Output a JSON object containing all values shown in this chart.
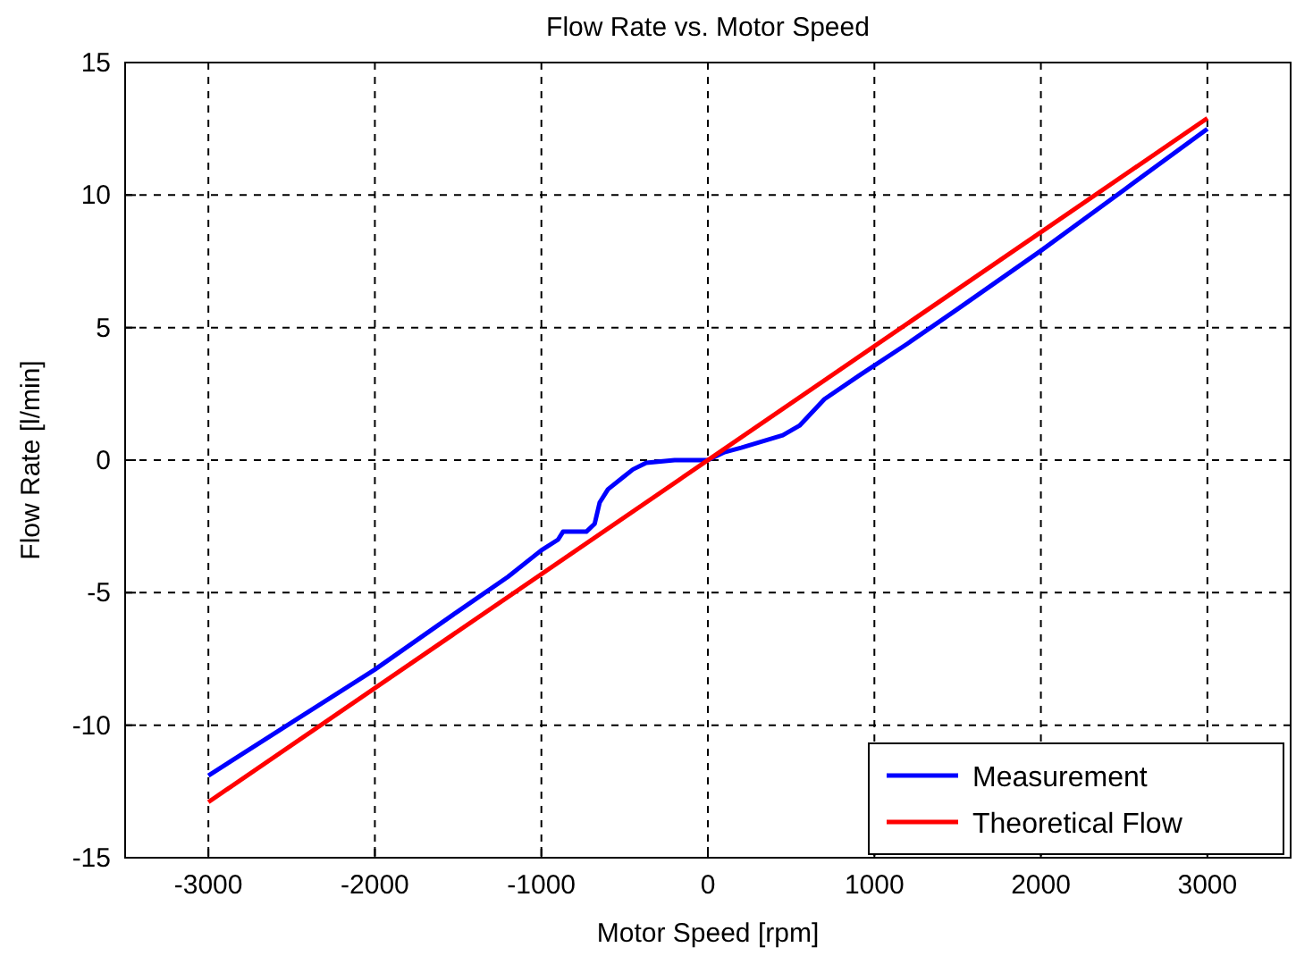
{
  "chart_data": {
    "type": "line",
    "title": "Flow Rate vs. Motor Speed",
    "xlabel": "Motor Speed [rpm]",
    "ylabel": "Flow Rate [l/min]",
    "xlim": [
      -3500,
      3500
    ],
    "ylim": [
      -15,
      15
    ],
    "xticks": [
      -3000,
      -2000,
      -1000,
      0,
      1000,
      2000,
      3000
    ],
    "yticks": [
      -15,
      -10,
      -5,
      0,
      5,
      10,
      15
    ],
    "grid": true,
    "legend": "bottom right",
    "line_style": "solid",
    "marker": "none",
    "series": [
      {
        "name": "Measurement",
        "color": "#0000ff",
        "x": [
          -3000,
          -2500,
          -2000,
          -1500,
          -1200,
          -1000,
          -900,
          -870,
          -730,
          -680,
          -650,
          -600,
          -510,
          -450,
          -370,
          -200,
          0,
          100,
          200,
          450,
          550,
          700,
          910,
          1200,
          1500,
          2000,
          2500,
          3000
        ],
        "values": [
          -11.9,
          -9.9,
          -7.9,
          -5.7,
          -4.4,
          -3.4,
          -3.0,
          -2.7,
          -2.7,
          -2.4,
          -1.6,
          -1.1,
          -0.65,
          -0.35,
          -0.1,
          0,
          0,
          0.3,
          0.47,
          0.94,
          1.3,
          2.3,
          3.2,
          4.4,
          5.7,
          7.9,
          10.2,
          12.5
        ]
      },
      {
        "name": "Theoretical Flow",
        "color": "#ff0000",
        "x": [
          -3000,
          3000
        ],
        "values": [
          -12.9,
          12.9
        ]
      }
    ]
  }
}
